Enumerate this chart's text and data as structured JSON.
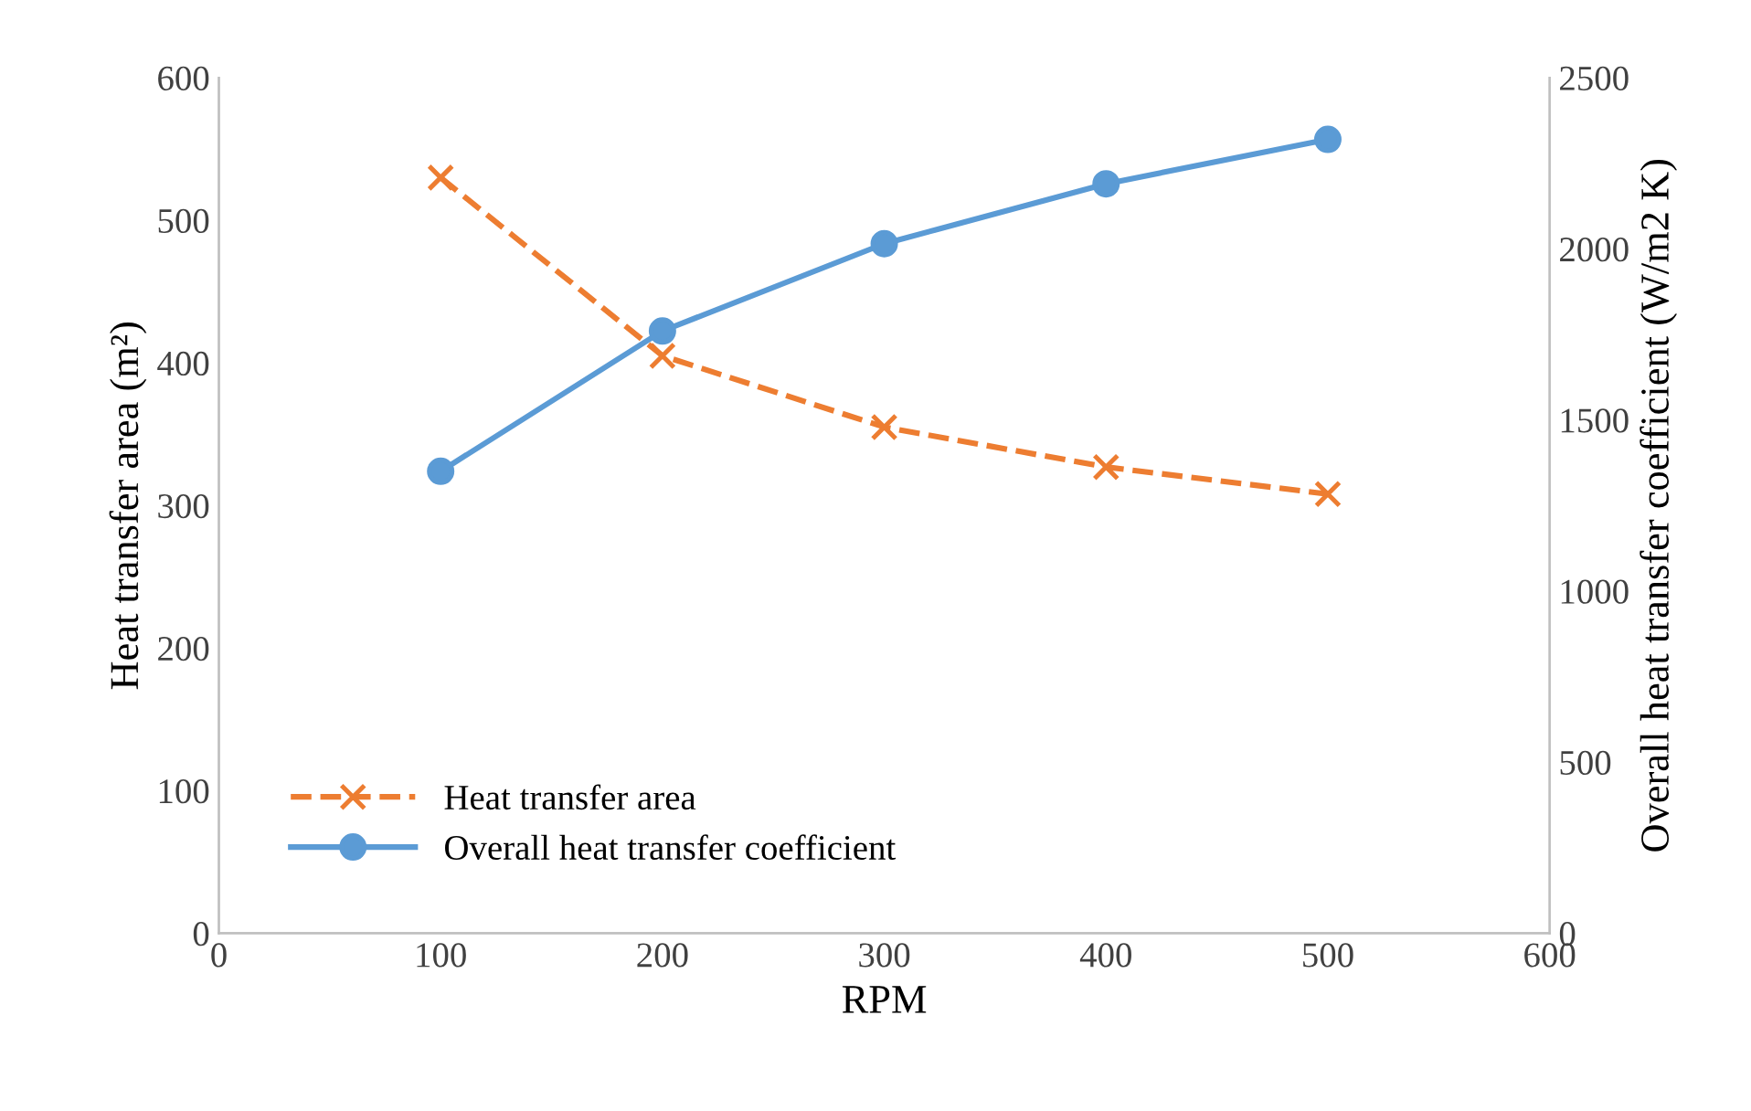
{
  "chart_data": {
    "type": "line",
    "xlabel": "RPM",
    "ylabel": "Heat transfer area (m²)",
    "y2label": "Overall heat transfer coefficient (W/m2 K)",
    "x": [
      100,
      200,
      300,
      400,
      500
    ],
    "series": [
      {
        "name": "Heat transfer area",
        "color": "#ed7d31",
        "values": [
          530,
          405,
          355,
          327,
          308
        ],
        "marker": "cross",
        "line_style": "dashed"
      },
      {
        "name": "Overall heat transfer coefficient",
        "color": "#5b9bd5",
        "values": [
          1350,
          1760,
          2015,
          2190,
          2320
        ],
        "marker": "circle",
        "line_style": "solid",
        "axis": "y2"
      }
    ],
    "xlim": [
      0,
      600
    ],
    "xticks": [
      0,
      100,
      200,
      300,
      400,
      500,
      600
    ],
    "ylim": [
      0,
      600
    ],
    "yticks": [
      0,
      100,
      200,
      300,
      400,
      500,
      600
    ],
    "y2lim": [
      0,
      2500
    ],
    "y2ticks": [
      0,
      500,
      1000,
      1500,
      2000,
      2500
    ],
    "grid": false,
    "legend": "bottom left"
  }
}
